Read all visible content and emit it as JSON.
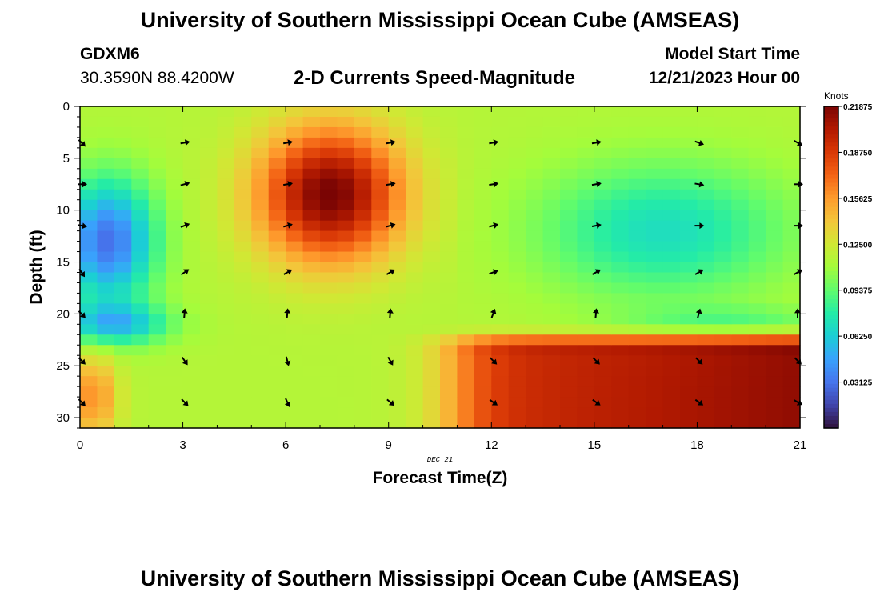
{
  "header": {
    "title": "University of Southern Mississippi Ocean Cube (AMSEAS)",
    "station": "GDXM6",
    "coords": "30.3590N  88.4200W",
    "subtitle": "2-D Currents Speed-Magnitude",
    "start_label": "Model Start Time",
    "start_date": "12/21/2023 Hour 00"
  },
  "footer": {
    "title": "University of Southern Mississippi Ocean Cube (AMSEAS)"
  },
  "chart_data": {
    "type": "heatmap",
    "title": "2-D Currents Speed-Magnitude",
    "xlabel": "Forecast Time(Z)",
    "ylabel": "Depth (ft)",
    "date_label": "DEC 21",
    "xlim": [
      0,
      21
    ],
    "ylim": [
      0,
      31
    ],
    "xticks": [
      "0",
      "3",
      "6",
      "9",
      "12",
      "15",
      "18",
      "21"
    ],
    "yticks": [
      "0",
      "5",
      "10",
      "15",
      "20",
      "25",
      "30"
    ],
    "colorbar": {
      "unit": "Knots",
      "vmin": 0,
      "vmax": 0.21875,
      "ticks": [
        "0.21875",
        "0.18750",
        "0.15625",
        "0.12500",
        "0.09375",
        "0.06250",
        "0.03125"
      ]
    },
    "colors": [
      "#30123b",
      "#4145ab",
      "#4675ed",
      "#39a2fc",
      "#1bcfd4",
      "#24eca6",
      "#61fc6c",
      "#a4fc3b",
      "#d1e834",
      "#f3c63a",
      "#fe9b2d",
      "#f36315",
      "#d93806",
      "#b11901",
      "#7a0403"
    ],
    "arrow_times": [
      0,
      3,
      6,
      9,
      12,
      15,
      18,
      21
    ],
    "arrow_depths": [
      3.5,
      7.5,
      11.5,
      16,
      20,
      24.5,
      28.5
    ],
    "arrows": [
      [
        135,
        80,
        80,
        80,
        80,
        80,
        110,
        120
      ],
      [
        90,
        75,
        80,
        80,
        80,
        80,
        100,
        90
      ],
      [
        100,
        70,
        75,
        75,
        75,
        80,
        90,
        90
      ],
      [
        145,
        55,
        60,
        60,
        70,
        60,
        60,
        60
      ],
      [
        135,
        5,
        5,
        5,
        20,
        5,
        15,
        0
      ],
      [
        135,
        145,
        165,
        150,
        135,
        135,
        135,
        135
      ],
      [
        135,
        135,
        155,
        130,
        125,
        125,
        125,
        120
      ]
    ]
  }
}
